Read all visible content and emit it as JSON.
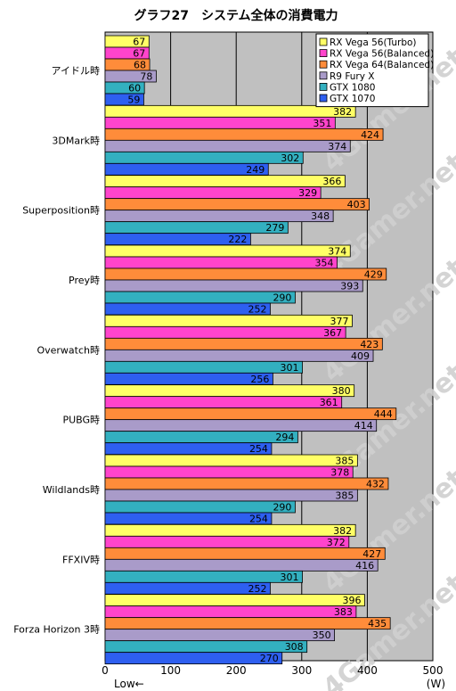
{
  "chart_data": {
    "type": "bar",
    "orientation": "horizontal",
    "title": "グラフ27　システム全体の消費電力",
    "categories": [
      "アイドル時",
      "3DMark時",
      "Superposition時",
      "Prey時",
      "Overwatch時",
      "PUBG時",
      "Wildlands時",
      "FFXIV時",
      "Forza Horizon 3時"
    ],
    "series": [
      {
        "name": "RX Vega 56(Turbo)",
        "color": "#ffff66",
        "values": [
          67,
          382,
          366,
          374,
          377,
          380,
          385,
          382,
          396
        ]
      },
      {
        "name": "RX Vega 56(Balanced)",
        "color": "#ff44cc",
        "values": [
          67,
          351,
          329,
          354,
          367,
          361,
          378,
          372,
          383
        ]
      },
      {
        "name": "RX Vega 64(Balanced)",
        "color": "#ff8c3a",
        "values": [
          68,
          424,
          403,
          429,
          423,
          444,
          432,
          427,
          435
        ]
      },
      {
        "name": "R9 Fury X",
        "color": "#a99bc9",
        "values": [
          78,
          374,
          348,
          393,
          409,
          414,
          385,
          416,
          350
        ]
      },
      {
        "name": "GTX 1080",
        "color": "#33b0c0",
        "values": [
          60,
          302,
          279,
          290,
          301,
          294,
          290,
          301,
          308
        ]
      },
      {
        "name": "GTX 1070",
        "color": "#2e5ff0",
        "values": [
          59,
          249,
          222,
          252,
          256,
          254,
          254,
          252,
          270
        ]
      }
    ],
    "xlim": [
      0,
      500
    ],
    "xticks": [
      "0",
      "100",
      "200",
      "300",
      "400",
      "500"
    ],
    "xlabel_left": "Low←",
    "xlabel_right": "(W)",
    "watermark": "4Gamer.net",
    "grid": true,
    "legend_position": "top-right",
    "plot_background": "#c0c0c0"
  }
}
